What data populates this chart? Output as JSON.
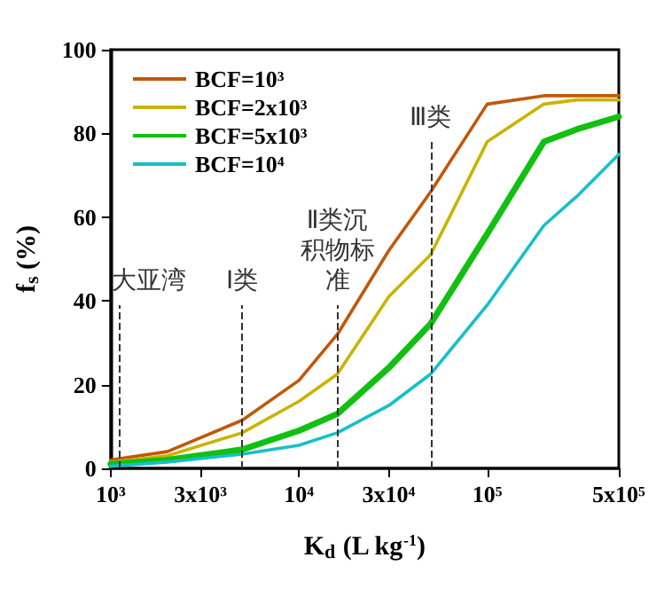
{
  "chart_data": {
    "type": "line",
    "xlabel": "K$_{d}$ (L kg$^{-1}$)",
    "ylabel": "f$_{s}$ (%)",
    "log": "x",
    "xlim": [
      1000,
      500000
    ],
    "xticks": [
      {
        "value": 1000,
        "label": "10³"
      },
      {
        "value": 3000,
        "label": "3x10³"
      },
      {
        "value": 10000,
        "label": "10⁴"
      },
      {
        "value": 30000,
        "label": "3x10⁴"
      },
      {
        "value": 100000,
        "label": "10⁵"
      },
      {
        "value": 500000,
        "label": "5x10⁵"
      }
    ],
    "ylim": [
      0,
      100
    ],
    "yticks": [
      0,
      20,
      40,
      60,
      80,
      100
    ],
    "grid": false,
    "legend": "top left",
    "marker": "none",
    "line_style": "solid",
    "x": [
      1000,
      2000,
      5000,
      10000,
      16000,
      30000,
      50000,
      100000,
      200000,
      300000,
      500000
    ],
    "series": [
      {
        "name": "BCF=10³",
        "color": "#c0580a",
        "values": [
          2,
          4,
          11.5,
          21,
          32,
          52,
          66,
          87,
          89,
          89,
          89
        ]
      },
      {
        "name": "BCF=2x10³",
        "color": "#c8b400",
        "values": [
          1.5,
          3,
          8.5,
          16,
          22.5,
          41,
          51,
          78,
          87,
          88,
          88
        ]
      },
      {
        "name": "BCF=5x10³",
        "color": "#11c011",
        "values": [
          1,
          2,
          4.5,
          9,
          13,
          24,
          34.5,
          56,
          78,
          81,
          84
        ]
      },
      {
        "name": "BCF=10⁴",
        "color": "#16c0c8",
        "values": [
          0.5,
          1.5,
          3.4,
          5.5,
          8.5,
          15,
          22.5,
          39,
          58,
          65,
          75
        ]
      }
    ],
    "ref_lines": [
      {
        "axis": "x",
        "value": 1100,
        "label": "大亚湾",
        "line_style": "dashed",
        "color": "#333333"
      },
      {
        "axis": "x",
        "value": 5000,
        "label": "Ⅰ类",
        "line_style": "dashed",
        "color": "#333333"
      },
      {
        "axis": "x",
        "value": 16000,
        "label": "Ⅱ类沉积物标准",
        "line_style": "dashed",
        "color": "#333333"
      },
      {
        "axis": "x",
        "value": 50000,
        "label": "Ⅲ类",
        "line_style": "dashed",
        "color": "#333333"
      }
    ]
  }
}
